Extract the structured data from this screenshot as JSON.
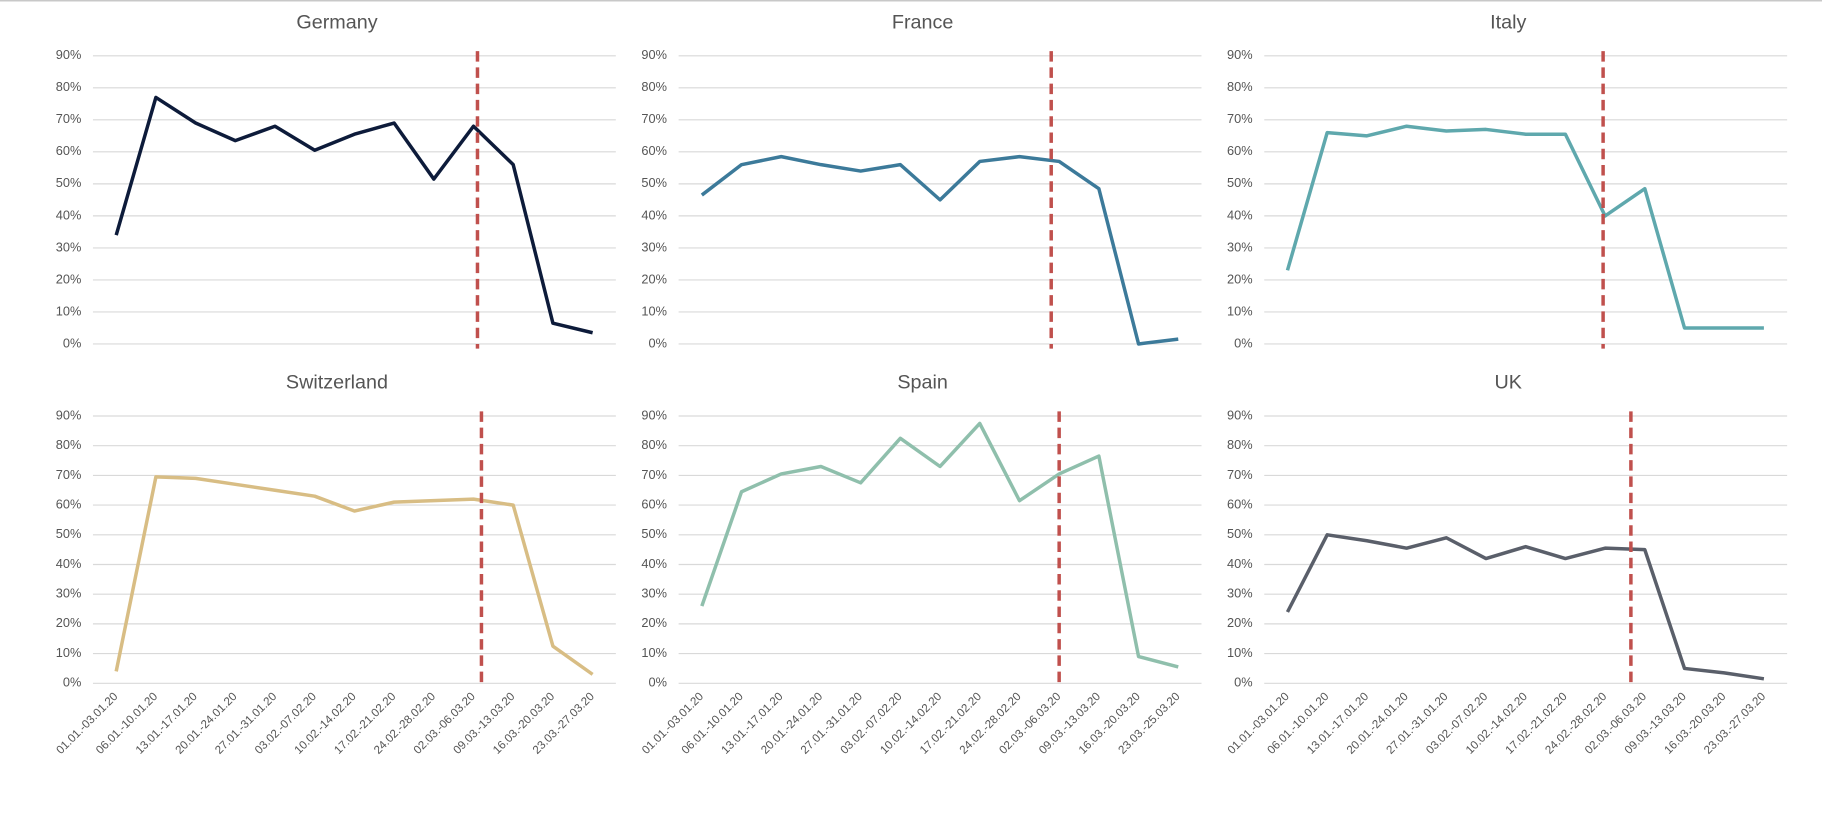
{
  "chart_data": [
    {
      "type": "line",
      "title": "Germany",
      "color": "#0d1b3a",
      "values": [
        34,
        77,
        69,
        63.5,
        68,
        60.5,
        65.5,
        69,
        51.5,
        68,
        56,
        6.5,
        3.5
      ],
      "ylim": [
        0,
        90
      ],
      "yticks": [
        {
          "value": 0,
          "label": "0%"
        },
        {
          "value": 10,
          "label": "10%"
        },
        {
          "value": 20,
          "label": "20%"
        },
        {
          "value": 30,
          "label": "30%"
        },
        {
          "value": 40,
          "label": "40%"
        },
        {
          "value": 50,
          "label": "50%"
        },
        {
          "value": 60,
          "label": "60%"
        },
        {
          "value": 70,
          "label": "70%"
        },
        {
          "value": 80,
          "label": "80%"
        },
        {
          "value": 90,
          "label": "90%"
        }
      ],
      "vline": {
        "x": 9.1,
        "color": "#c0504d"
      }
    },
    {
      "type": "line",
      "title": "France",
      "color": "#3c7a9a",
      "values": [
        46.5,
        56,
        58.5,
        56,
        54,
        56,
        45,
        57,
        58.5,
        57,
        48.5,
        0,
        1.5
      ],
      "ylim": [
        0,
        90
      ],
      "yticks": [
        {
          "value": 0,
          "label": "0%"
        },
        {
          "value": 10,
          "label": "10%"
        },
        {
          "value": 20,
          "label": "20%"
        },
        {
          "value": 30,
          "label": "30%"
        },
        {
          "value": 40,
          "label": "40%"
        },
        {
          "value": 50,
          "label": "50%"
        },
        {
          "value": 60,
          "label": "60%"
        },
        {
          "value": 70,
          "label": "70%"
        },
        {
          "value": 80,
          "label": "80%"
        },
        {
          "value": 90,
          "label": "90%"
        }
      ],
      "vline": {
        "x": 8.8,
        "color": "#c0504d"
      }
    },
    {
      "type": "line",
      "title": "Italy",
      "color": "#5fa8ad",
      "values": [
        23,
        66,
        65,
        68,
        66.5,
        67,
        65.5,
        65.5,
        40,
        48.5,
        5,
        5,
        5
      ],
      "ylim": [
        0,
        90
      ],
      "yticks": [
        {
          "value": 0,
          "label": "0%"
        },
        {
          "value": 10,
          "label": "10%"
        },
        {
          "value": 20,
          "label": "20%"
        },
        {
          "value": 30,
          "label": "30%"
        },
        {
          "value": 40,
          "label": "40%"
        },
        {
          "value": 50,
          "label": "50%"
        },
        {
          "value": 60,
          "label": "60%"
        },
        {
          "value": 70,
          "label": "70%"
        },
        {
          "value": 80,
          "label": "80%"
        },
        {
          "value": 90,
          "label": "90%"
        }
      ],
      "vline": {
        "x": 7.95,
        "color": "#c0504d"
      }
    },
    {
      "type": "line",
      "title": "Switzerland",
      "color": "#d8bd84",
      "categories": [
        "01.01.-03.01.20",
        "06.01.-10.01.20",
        "13.01.-17.01.20",
        "20.01.-24.01.20",
        "27.01.-31.01.20",
        "03.02.-07.02.20",
        "10.02.-14.02.20",
        "17.02.-21.02.20",
        "24.02.-28.02.20",
        "02.03.-06.03.20",
        "09.03.-13.03.20",
        "16.03.-20.03.20",
        "23.03.-27.03.20"
      ],
      "values": [
        4,
        69.5,
        69,
        67,
        65,
        63,
        58,
        61,
        61.5,
        62,
        60,
        12.5,
        3
      ],
      "ylim": [
        0,
        90
      ],
      "yticks": [
        {
          "value": 0,
          "label": "0%"
        },
        {
          "value": 10,
          "label": "10%"
        },
        {
          "value": 20,
          "label": "20%"
        },
        {
          "value": 30,
          "label": "30%"
        },
        {
          "value": 40,
          "label": "40%"
        },
        {
          "value": 50,
          "label": "50%"
        },
        {
          "value": 60,
          "label": "60%"
        },
        {
          "value": 70,
          "label": "70%"
        },
        {
          "value": 80,
          "label": "80%"
        },
        {
          "value": 90,
          "label": "90%"
        }
      ],
      "vline": {
        "x": 9.2,
        "color": "#c0504d"
      }
    },
    {
      "type": "line",
      "title": "Spain",
      "color": "#8fbfac",
      "categories": [
        "01.01.-03.01.20",
        "06.01.-10.01.20",
        "13.01.-17.01.20",
        "20.01.-24.01.20",
        "27.01.-31.01.20",
        "03.02.-07.02.20",
        "10.02.-14.02.20",
        "17.02.-21.02.20",
        "24.02.-28.02.20",
        "02.03.-06.03.20",
        "09.03.-13.03.20",
        "16.03.-20.03.20",
        "23.03.-25.03.20"
      ],
      "values": [
        26,
        64.5,
        70.5,
        73,
        67.5,
        82.5,
        73,
        87.5,
        61.5,
        70.5,
        76.5,
        9,
        5.5
      ],
      "ylim": [
        0,
        90
      ],
      "yticks": [
        {
          "value": 0,
          "label": "0%"
        },
        {
          "value": 10,
          "label": "10%"
        },
        {
          "value": 20,
          "label": "20%"
        },
        {
          "value": 30,
          "label": "30%"
        },
        {
          "value": 40,
          "label": "40%"
        },
        {
          "value": 50,
          "label": "50%"
        },
        {
          "value": 60,
          "label": "60%"
        },
        {
          "value": 70,
          "label": "70%"
        },
        {
          "value": 80,
          "label": "80%"
        },
        {
          "value": 90,
          "label": "90%"
        }
      ],
      "vline": {
        "x": 9,
        "color": "#c0504d"
      }
    },
    {
      "type": "line",
      "title": "UK",
      "color": "#5a5f6a",
      "categories": [
        "01.01.-03.01.20",
        "06.01.-10.01.20",
        "13.01.-17.01.20",
        "20.01.-24.01.20",
        "27.01.-31.01.20",
        "03.02.-07.02.20",
        "10.02.-14.02.20",
        "17.02.-21.02.20",
        "24.02.-28.02.20",
        "02.03.-06.03.20",
        "09.03.-13.03.20",
        "16.03.-20.03.20",
        "23.03.-27.03.20"
      ],
      "values": [
        24,
        50,
        48,
        45.5,
        49,
        42,
        46,
        42,
        45.5,
        45,
        5,
        3.5,
        1.5
      ],
      "ylim": [
        0,
        90
      ],
      "yticks": [
        {
          "value": 0,
          "label": "0%"
        },
        {
          "value": 10,
          "label": "10%"
        },
        {
          "value": 20,
          "label": "20%"
        },
        {
          "value": 30,
          "label": "30%"
        },
        {
          "value": 40,
          "label": "40%"
        },
        {
          "value": 50,
          "label": "50%"
        },
        {
          "value": 60,
          "label": "60%"
        },
        {
          "value": 70,
          "label": "70%"
        },
        {
          "value": 80,
          "label": "80%"
        },
        {
          "value": 90,
          "label": "90%"
        }
      ],
      "vline": {
        "x": 8.65,
        "color": "#c0504d"
      }
    }
  ]
}
